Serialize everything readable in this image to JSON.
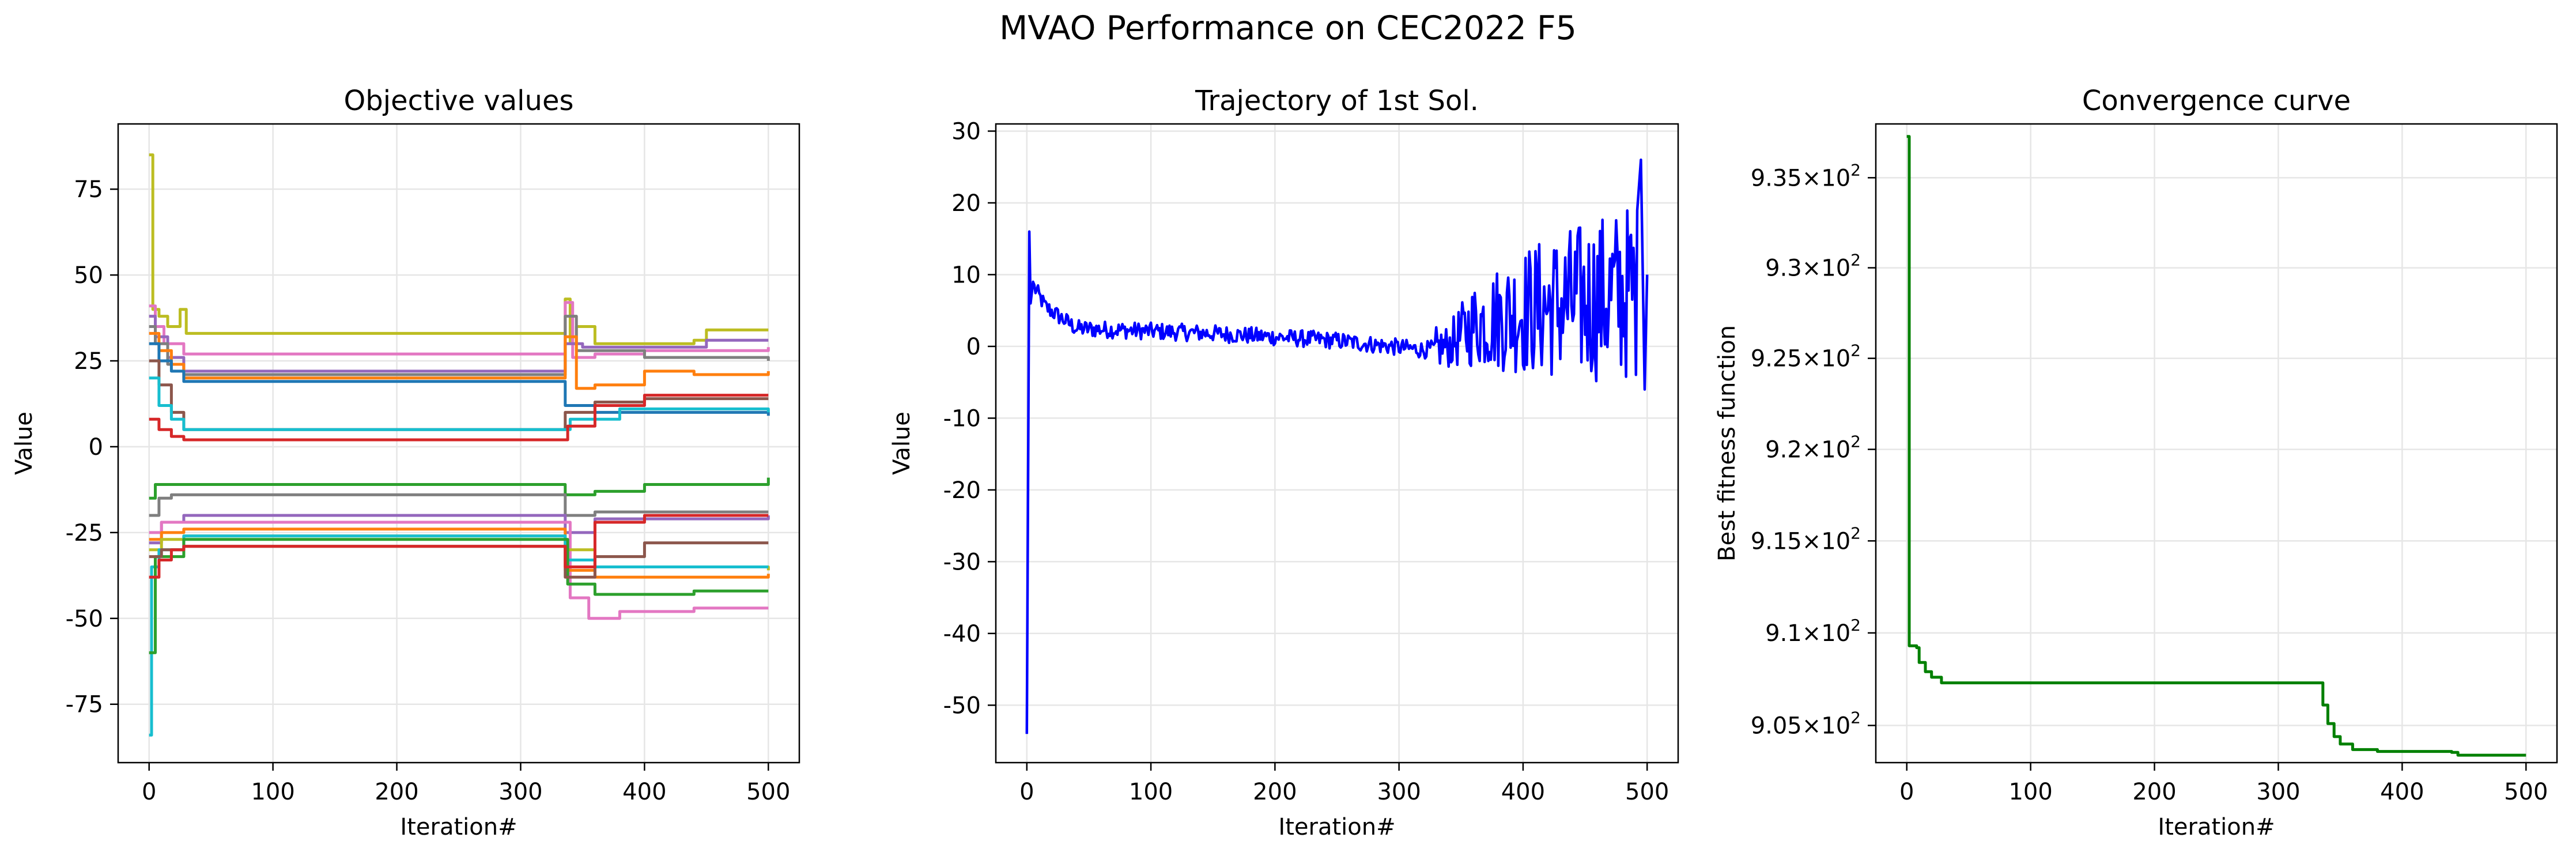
{
  "figure": {
    "suptitle": "MVAO Performance on CEC2022 F5"
  },
  "colors": {
    "tab10": [
      "#1f77b4",
      "#ff7f0e",
      "#2ca02c",
      "#d62728",
      "#9467bd",
      "#8c564b",
      "#e377c2",
      "#7f7f7f",
      "#bcbd22",
      "#17becf"
    ],
    "trajectory": "#0000ff",
    "convergence": "#008000",
    "grid": "#e6e6e6",
    "axes": "#000000"
  },
  "chart_data": [
    {
      "type": "line",
      "title": "Objective values",
      "xlabel": "Iteration#",
      "ylabel": "Value",
      "xlim": [
        -25,
        525
      ],
      "ylim": [
        -92,
        94
      ],
      "xticks": [
        0,
        100,
        200,
        300,
        400,
        500
      ],
      "yticks": [
        -75,
        -50,
        -25,
        0,
        25,
        50,
        75
      ],
      "grid": true,
      "series": [
        {
          "color_index": 8,
          "values": [
            [
              0,
              85
            ],
            [
              3,
              40
            ],
            [
              8,
              38
            ],
            [
              15,
              35
            ],
            [
              25,
              40
            ],
            [
              30,
              33
            ],
            [
              332,
              33
            ],
            [
              336,
              43
            ],
            [
              340,
              30
            ],
            [
              345,
              35
            ],
            [
              360,
              30
            ],
            [
              440,
              31
            ],
            [
              450,
              34
            ],
            [
              500,
              34
            ]
          ]
        },
        {
          "color_index": 6,
          "values": [
            [
              0,
              41
            ],
            [
              5,
              35
            ],
            [
              12,
              30
            ],
            [
              28,
              27
            ],
            [
              332,
              27
            ],
            [
              336,
              42
            ],
            [
              342,
              26
            ],
            [
              360,
              27
            ],
            [
              400,
              28
            ],
            [
              500,
              29
            ]
          ]
        },
        {
          "color_index": 4,
          "values": [
            [
              0,
              38
            ],
            [
              5,
              32
            ],
            [
              15,
              26
            ],
            [
              28,
              22
            ],
            [
              332,
              22
            ],
            [
              336,
              30
            ],
            [
              350,
              29
            ],
            [
              450,
              31
            ],
            [
              500,
              31
            ]
          ]
        },
        {
          "color_index": 7,
          "values": [
            [
              0,
              35
            ],
            [
              5,
              30
            ],
            [
              15,
              24
            ],
            [
              28,
              21
            ],
            [
              332,
              21
            ],
            [
              336,
              38
            ],
            [
              345,
              28
            ],
            [
              400,
              26
            ],
            [
              500,
              25
            ]
          ]
        },
        {
          "color_index": 1,
          "values": [
            [
              0,
              33
            ],
            [
              8,
              28
            ],
            [
              18,
              24
            ],
            [
              28,
              20
            ],
            [
              332,
              20
            ],
            [
              336,
              32
            ],
            [
              345,
              17
            ],
            [
              360,
              18
            ],
            [
              400,
              22
            ],
            [
              440,
              21
            ],
            [
              500,
              22
            ]
          ]
        },
        {
          "color_index": 0,
          "values": [
            [
              0,
              30
            ],
            [
              8,
              25
            ],
            [
              18,
              22
            ],
            [
              28,
              19
            ],
            [
              332,
              19
            ],
            [
              336,
              12
            ],
            [
              360,
              10
            ],
            [
              500,
              9
            ]
          ]
        },
        {
          "color_index": 5,
          "values": [
            [
              0,
              25
            ],
            [
              8,
              18
            ],
            [
              18,
              10
            ],
            [
              28,
              5
            ],
            [
              332,
              5
            ],
            [
              336,
              10
            ],
            [
              360,
              13
            ],
            [
              400,
              14
            ],
            [
              500,
              14
            ]
          ]
        },
        {
          "color_index": 9,
          "values": [
            [
              0,
              20
            ],
            [
              8,
              12
            ],
            [
              18,
              8
            ],
            [
              28,
              5
            ],
            [
              332,
              5
            ],
            [
              340,
              8
            ],
            [
              380,
              11
            ],
            [
              500,
              10
            ]
          ]
        },
        {
          "color_index": 3,
          "values": [
            [
              0,
              8
            ],
            [
              8,
              5
            ],
            [
              18,
              3
            ],
            [
              28,
              2
            ],
            [
              332,
              2
            ],
            [
              338,
              6
            ],
            [
              360,
              12
            ],
            [
              400,
              15
            ],
            [
              500,
              15
            ]
          ]
        },
        {
          "color_index": 2,
          "values": [
            [
              0,
              -15
            ],
            [
              5,
              -11
            ],
            [
              332,
              -11
            ],
            [
              336,
              -14
            ],
            [
              360,
              -13
            ],
            [
              400,
              -11
            ],
            [
              500,
              -9
            ]
          ]
        },
        {
          "color_index": 7,
          "values": [
            [
              0,
              -20
            ],
            [
              8,
              -15
            ],
            [
              18,
              -14
            ],
            [
              332,
              -14
            ],
            [
              336,
              -20
            ],
            [
              360,
              -19
            ],
            [
              500,
              -19
            ]
          ]
        },
        {
          "color_index": 4,
          "values": [
            [
              0,
              -28
            ],
            [
              10,
              -22
            ],
            [
              28,
              -20
            ],
            [
              332,
              -20
            ],
            [
              336,
              -25
            ],
            [
              360,
              -21
            ],
            [
              440,
              -21
            ],
            [
              500,
              -20
            ]
          ]
        },
        {
          "color_index": 6,
          "values": [
            [
              0,
              -25
            ],
            [
              10,
              -22
            ],
            [
              28,
              -22
            ],
            [
              332,
              -22
            ],
            [
              340,
              -44
            ],
            [
              355,
              -50
            ],
            [
              380,
              -48
            ],
            [
              440,
              -47
            ],
            [
              500,
              -47
            ]
          ]
        },
        {
          "color_index": 1,
          "values": [
            [
              0,
              -27
            ],
            [
              10,
              -25
            ],
            [
              28,
              -24
            ],
            [
              332,
              -24
            ],
            [
              336,
              -36
            ],
            [
              360,
              -38
            ],
            [
              500,
              -37
            ]
          ]
        },
        {
          "color_index": 8,
          "values": [
            [
              0,
              -30
            ],
            [
              10,
              -27
            ],
            [
              28,
              -26
            ],
            [
              332,
              -26
            ],
            [
              336,
              -30
            ],
            [
              360,
              -35
            ],
            [
              500,
              -36
            ]
          ]
        },
        {
          "color_index": 9,
          "values": [
            [
              0,
              -84
            ],
            [
              2,
              -35
            ],
            [
              8,
              -30
            ],
            [
              28,
              -26
            ],
            [
              332,
              -26
            ],
            [
              336,
              -33
            ],
            [
              360,
              -35
            ],
            [
              500,
              -35
            ]
          ]
        },
        {
          "color_index": 2,
          "values": [
            [
              0,
              -60
            ],
            [
              5,
              -32
            ],
            [
              28,
              -27
            ],
            [
              332,
              -27
            ],
            [
              338,
              -40
            ],
            [
              360,
              -43
            ],
            [
              440,
              -42
            ],
            [
              500,
              -42
            ]
          ]
        },
        {
          "color_index": 5,
          "values": [
            [
              0,
              -32
            ],
            [
              10,
              -30
            ],
            [
              28,
              -29
            ],
            [
              332,
              -29
            ],
            [
              336,
              -38
            ],
            [
              360,
              -32
            ],
            [
              400,
              -28
            ],
            [
              500,
              -28
            ]
          ]
        },
        {
          "color_index": 3,
          "values": [
            [
              0,
              -38
            ],
            [
              8,
              -33
            ],
            [
              18,
              -30
            ],
            [
              28,
              -29
            ],
            [
              332,
              -29
            ],
            [
              336,
              -35
            ],
            [
              360,
              -22
            ],
            [
              400,
              -20
            ],
            [
              500,
              -20
            ]
          ]
        }
      ]
    },
    {
      "type": "line",
      "title": "Trajectory of 1st Sol.",
      "xlabel": "Iteration#",
      "ylabel": "Value",
      "xlim": [
        -25,
        525
      ],
      "ylim": [
        -58,
        31
      ],
      "xticks": [
        0,
        100,
        200,
        300,
        400,
        500
      ],
      "yticks": [
        -50,
        -40,
        -30,
        -20,
        -10,
        0,
        10,
        20,
        30
      ],
      "grid": true,
      "spikes": [
        [
          0,
          -54
        ],
        [
          2,
          16
        ],
        [
          3,
          6
        ],
        [
          5,
          9
        ],
        [
          495,
          26
        ],
        [
          498,
          -6
        ],
        [
          500,
          10
        ]
      ],
      "envelope": [
        [
          5,
          0,
          8.5
        ],
        [
          15,
          0,
          5.5
        ],
        [
          40,
          0,
          2.5
        ],
        [
          150,
          0,
          1.8
        ],
        [
          250,
          0,
          0.8
        ],
        [
          320,
          0,
          -0.5
        ],
        [
          340,
          0,
          0
        ],
        [
          360,
          3,
          3
        ],
        [
          400,
          6,
          5
        ],
        [
          440,
          8,
          6
        ],
        [
          500,
          10,
          8
        ]
      ]
    },
    {
      "type": "line",
      "title": "Convergence curve",
      "xlabel": "Iteration#",
      "ylabel": "Best fitness function",
      "xlim": [
        -25,
        525
      ],
      "ylim": [
        903,
        938
      ],
      "yscale": "log",
      "xticks": [
        0,
        100,
        200,
        300,
        400,
        500
      ],
      "yticks": [
        {
          "value": 905,
          "mantissa": "9.05"
        },
        {
          "value": 910,
          "mantissa": "9.1"
        },
        {
          "value": 915,
          "mantissa": "9.15"
        },
        {
          "value": 920,
          "mantissa": "9.2"
        },
        {
          "value": 925,
          "mantissa": "9.25"
        },
        {
          "value": 930,
          "mantissa": "9.3"
        },
        {
          "value": 935,
          "mantissa": "9.35"
        }
      ],
      "tick_times": "×",
      "tick_base": "10",
      "tick_exp": "2",
      "grid": true,
      "series": [
        {
          "color_key": "convergence",
          "values": [
            [
              0,
              937.3
            ],
            [
              1,
              937.3
            ],
            [
              2,
              909.3
            ],
            [
              8,
              909.2
            ],
            [
              10,
              908.4
            ],
            [
              15,
              907.9
            ],
            [
              20,
              907.6
            ],
            [
              28,
              907.3
            ],
            [
              30,
              907.3
            ],
            [
              333,
              907.3
            ],
            [
              336,
              906.1
            ],
            [
              340,
              905.1
            ],
            [
              345,
              904.4
            ],
            [
              350,
              904.0
            ],
            [
              360,
              903.7
            ],
            [
              380,
              903.6
            ],
            [
              440,
              903.55
            ],
            [
              445,
              903.4
            ],
            [
              500,
              903.4
            ]
          ]
        }
      ]
    }
  ]
}
